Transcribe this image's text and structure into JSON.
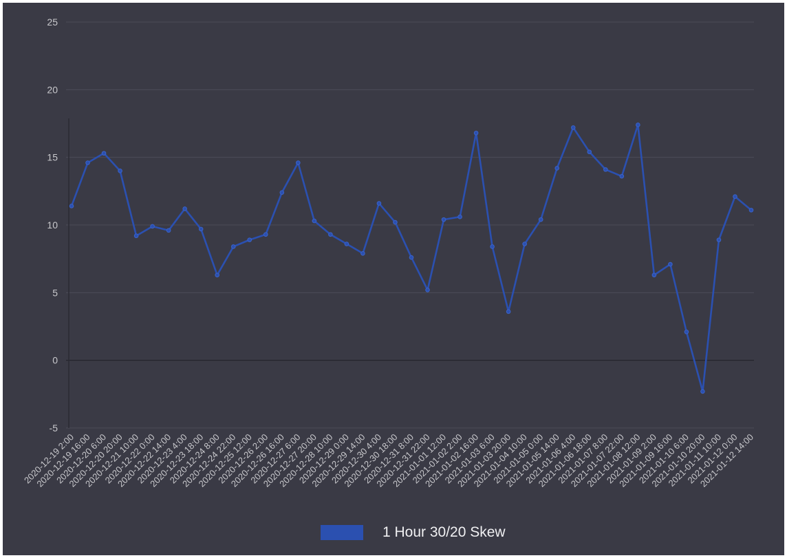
{
  "chart_data": {
    "type": "line",
    "title": "",
    "xlabel": "",
    "ylabel": "",
    "ylim": [
      -5,
      25
    ],
    "yticks": [
      "25",
      "20",
      "15",
      "10",
      "5",
      "0",
      "-5"
    ],
    "grid": true,
    "legend_position": "bottom",
    "x": [
      "2020-12-19 2:00",
      "2020-12-19 16:00",
      "2020-12-20 6:00",
      "2020-12-20 20:00",
      "2020-12-21 10:00",
      "2020-12-22 0:00",
      "2020-12-22 14:00",
      "2020-12-23 4:00",
      "2020-12-23 18:00",
      "2020-12-24 8:00",
      "2020-12-24 22:00",
      "2020-12-25 12:00",
      "2020-12-26 2:00",
      "2020-12-26 16:00",
      "2020-12-27 6:00",
      "2020-12-27 20:00",
      "2020-12-28 10:00",
      "2020-12-29 0:00",
      "2020-12-29 14:00",
      "2020-12-30 4:00",
      "2020-12-30 18:00",
      "2020-12-31 8:00",
      "2020-12-31 22:00",
      "2021-01-01 12:00",
      "2021-01-02 2:00",
      "2021-01-02 16:00",
      "2021-01-03 6:00",
      "2021-01-03 20:00",
      "2021-01-04 10:00",
      "2021-01-05 0:00",
      "2021-01-05 14:00",
      "2021-01-06 4:00",
      "2021-01-06 18:00",
      "2021-01-07 8:00",
      "2021-01-07 22:00",
      "2021-01-08 12:00",
      "2021-01-09 2:00",
      "2021-01-09 16:00",
      "2021-01-10 6:00",
      "2021-01-10 20:00",
      "2021-01-11 10:00",
      "2021-01-12 0:00",
      "2021-01-12 14:00"
    ],
    "series": [
      {
        "name": "1 Hour 30/20 Skew",
        "color": "#2b50b0",
        "values": [
          11.4,
          14.6,
          15.3,
          14.0,
          9.2,
          9.9,
          9.6,
          11.2,
          9.7,
          6.3,
          8.4,
          8.9,
          9.3,
          12.4,
          14.6,
          10.3,
          9.3,
          8.6,
          7.9,
          11.6,
          10.2,
          7.6,
          5.2,
          10.4,
          10.6,
          16.8,
          8.4,
          3.6,
          8.6,
          10.4,
          14.2,
          17.2,
          15.4,
          14.1,
          13.6,
          17.4,
          6.3,
          7.1,
          2.1,
          -2.3,
          8.9,
          12.1,
          11.1
        ]
      }
    ]
  }
}
